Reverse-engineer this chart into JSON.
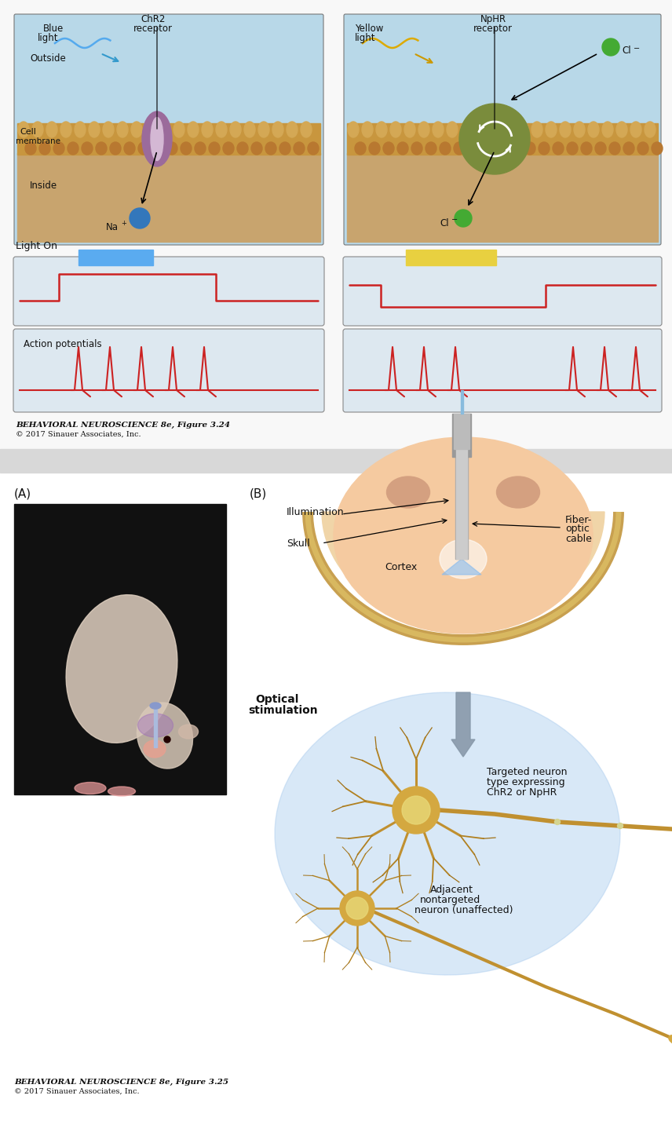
{
  "fig_width": 8.56,
  "fig_height": 14.42,
  "bg_color": "#ffffff",
  "blue_sky": "#b8d8e8",
  "tan_ground": "#c8a46e",
  "chr2_purple": "#9b6b9b",
  "nphr_green": "#7a8c3c",
  "red_trace": "#cc2222",
  "light_on_blue": "#5aabf0",
  "light_on_yellow": "#e8d040",
  "trace_bg": "#dde8f0",
  "caption1": "BEHAVIORAL NEUROSCIENCE 8e, Figure 3.24",
  "copyright1": "© 2017 Sinauer Associates, Inc.",
  "caption2": "BEHAVIORAL NEUROSCIENCE 8e, Figure 3.25",
  "copyright2": "© 2017 Sinauer Associates, Inc."
}
